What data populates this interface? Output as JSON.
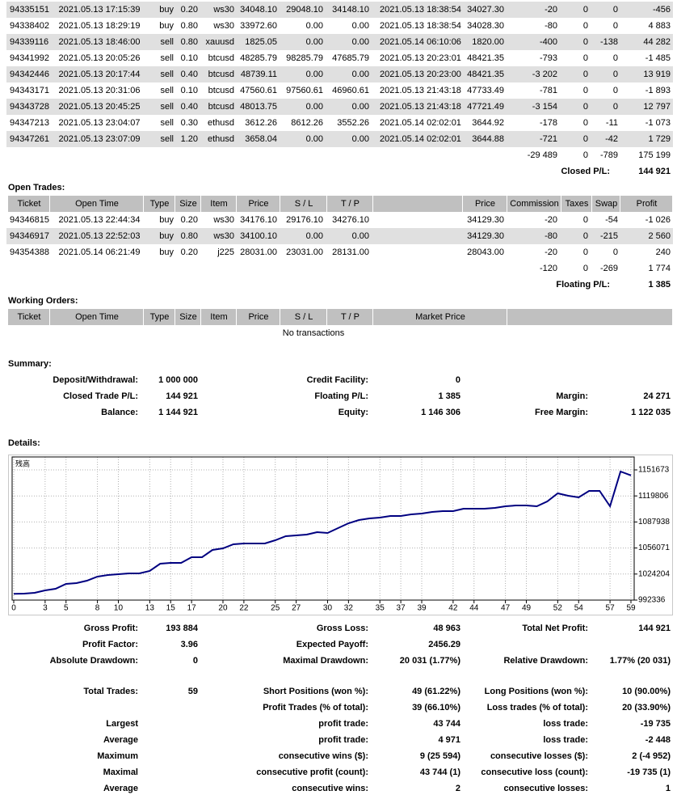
{
  "closed_trades": {
    "rows": [
      [
        "94335151",
        "2021.05.13 17:15:39",
        "buy",
        "0.20",
        "ws30",
        "34048.10",
        "29048.10",
        "34148.10",
        "2021.05.13 18:38:54",
        "34027.30",
        "-20",
        "0",
        "0",
        "-456"
      ],
      [
        "94338402",
        "2021.05.13 18:29:19",
        "buy",
        "0.80",
        "ws30",
        "33972.60",
        "0.00",
        "0.00",
        "2021.05.13 18:38:54",
        "34028.30",
        "-80",
        "0",
        "0",
        "4 883"
      ],
      [
        "94339116",
        "2021.05.13 18:46:00",
        "sell",
        "0.80",
        "xauusd",
        "1825.05",
        "0.00",
        "0.00",
        "2021.05.14 06:10:06",
        "1820.00",
        "-400",
        "0",
        "-138",
        "44 282"
      ],
      [
        "94341992",
        "2021.05.13 20:05:26",
        "sell",
        "0.10",
        "btcusd",
        "48285.79",
        "98285.79",
        "47685.79",
        "2021.05.13 20:23:01",
        "48421.35",
        "-793",
        "0",
        "0",
        "-1 485"
      ],
      [
        "94342446",
        "2021.05.13 20:17:44",
        "sell",
        "0.40",
        "btcusd",
        "48739.11",
        "0.00",
        "0.00",
        "2021.05.13 20:23:00",
        "48421.35",
        "-3 202",
        "0",
        "0",
        "13 919"
      ],
      [
        "94343171",
        "2021.05.13 20:31:06",
        "sell",
        "0.10",
        "btcusd",
        "47560.61",
        "97560.61",
        "46960.61",
        "2021.05.13 21:43:18",
        "47733.49",
        "-781",
        "0",
        "0",
        "-1 893"
      ],
      [
        "94343728",
        "2021.05.13 20:45:25",
        "sell",
        "0.40",
        "btcusd",
        "48013.75",
        "0.00",
        "0.00",
        "2021.05.13 21:43:18",
        "47721.49",
        "-3 154",
        "0",
        "0",
        "12 797"
      ],
      [
        "94347213",
        "2021.05.13 23:04:07",
        "sell",
        "0.30",
        "ethusd",
        "3612.26",
        "8612.26",
        "3552.26",
        "2021.05.14 02:02:01",
        "3644.92",
        "-178",
        "0",
        "-11",
        "-1 073"
      ],
      [
        "94347261",
        "2021.05.13 23:07:09",
        "sell",
        "1.20",
        "ethusd",
        "3658.04",
        "0.00",
        "0.00",
        "2021.05.14 02:02:01",
        "3644.88",
        "-721",
        "0",
        "-42",
        "1 729"
      ]
    ],
    "totals": [
      "-29 489",
      "0",
      "-789",
      "175 199"
    ],
    "result_label": "Closed P/L:",
    "result": "144 921"
  },
  "open_trades": {
    "title": "Open Trades:",
    "header": [
      "Ticket",
      "Open Time",
      "Type",
      "Size",
      "Item",
      "Price",
      "S / L",
      "T / P",
      "Price",
      "Commission",
      "Taxes",
      "Swap",
      "Profit"
    ],
    "rows": [
      [
        "94346815",
        "2021.05.13 22:44:34",
        "buy",
        "0.20",
        "ws30",
        "34176.10",
        "29176.10",
        "34276.10",
        "34129.30",
        "-20",
        "0",
        "-54",
        "-1 026"
      ],
      [
        "94346917",
        "2021.05.13 22:52:03",
        "buy",
        "0.80",
        "ws30",
        "34100.10",
        "0.00",
        "0.00",
        "34129.30",
        "-80",
        "0",
        "-215",
        "2 560"
      ],
      [
        "94354388",
        "2021.05.14 06:21:49",
        "buy",
        "0.20",
        "j225",
        "28031.00",
        "23031.00",
        "28131.00",
        "28043.00",
        "-20",
        "0",
        "0",
        "240"
      ]
    ],
    "totals": [
      "-120",
      "0",
      "-269",
      "1 774"
    ],
    "result_label": "Floating P/L:",
    "result": "1 385"
  },
  "working_orders": {
    "title": "Working Orders:",
    "header": [
      "Ticket",
      "Open Time",
      "Type",
      "Size",
      "Item",
      "Price",
      "S / L",
      "T / P",
      "Market Price"
    ],
    "empty": "No transactions"
  },
  "summary": {
    "title": "Summary:",
    "rows": [
      {
        "left": [
          "Deposit/Withdrawal:",
          "1 000 000"
        ],
        "middle": [
          "Credit Facility:",
          "0"
        ]
      },
      {
        "left": [
          "Closed Trade P/L:",
          "144 921"
        ],
        "middle": [
          "Floating P/L:",
          "1 385"
        ],
        "right": [
          "Margin:",
          "24 271"
        ]
      },
      {
        "left": [
          "Balance:",
          "1 144 921"
        ],
        "middle": [
          "Equity:",
          "1 146 306"
        ],
        "right": [
          "Free Margin:",
          "1 122 035"
        ]
      }
    ]
  },
  "details": {
    "title": "Details:",
    "rows": [
      {
        "left": [
          "Gross Profit:",
          "193 884"
        ],
        "middle": [
          "Gross Loss:",
          "48 963"
        ],
        "right": [
          "Total Net Profit:",
          "144 921"
        ]
      },
      {
        "left": [
          "Profit Factor:",
          "3.96"
        ],
        "middle": [
          "Expected Payoff:",
          "2456.29"
        ]
      },
      {
        "left": [
          "Absolute Drawdown:",
          "0"
        ],
        "middle": [
          "Maximal Drawdown:",
          "20 031 (1.77%)"
        ],
        "right": [
          "Relative Drawdown:",
          "1.77% (20 031)"
        ]
      },
      {
        "left": [
          "Total Trades:",
          "59"
        ],
        "middle": [
          "Short Positions (won %):",
          "49 (61.22%)"
        ],
        "right": [
          "Long Positions (won %):",
          "10 (90.00%)"
        ]
      },
      {
        "middle": [
          "Profit Trades (% of total):",
          "39 (66.10%)"
        ],
        "right": [
          "Loss trades (% of total):",
          "20 (33.90%)"
        ]
      },
      {
        "left": [
          "Largest"
        ],
        "middle": [
          "profit trade:",
          "43 744"
        ],
        "right": [
          "loss trade:",
          "-19 735"
        ]
      },
      {
        "left": [
          "Average"
        ],
        "middle": [
          "profit trade:",
          "4 971"
        ],
        "right": [
          "loss trade:",
          "-2 448"
        ]
      },
      {
        "left": [
          "Maximum"
        ],
        "middle": [
          "consecutive wins ($):",
          "9 (25 594)"
        ],
        "right": [
          "consecutive losses ($):",
          "2 (-4 952)"
        ]
      },
      {
        "left": [
          "Maximal"
        ],
        "middle": [
          "consecutive profit (count):",
          "43 744 (1)"
        ],
        "right": [
          "consecutive loss (count):",
          "-19 735 (1)"
        ]
      },
      {
        "left": [
          "Average"
        ],
        "middle": [
          "consecutive wins:",
          "2"
        ],
        "right": [
          "consecutive losses:",
          "1"
        ]
      }
    ]
  },
  "chart_data": {
    "type": "line",
    "title": "残高",
    "color": "#000080",
    "x": [
      0,
      1,
      2,
      3,
      4,
      5,
      6,
      7,
      8,
      9,
      10,
      11,
      12,
      13,
      14,
      15,
      16,
      17,
      18,
      19,
      20,
      21,
      22,
      23,
      24,
      25,
      26,
      27,
      28,
      29,
      30,
      31,
      32,
      33,
      34,
      35,
      36,
      37,
      38,
      39,
      40,
      41,
      42,
      43,
      44,
      45,
      46,
      47,
      48,
      49,
      50,
      51,
      52,
      53,
      54,
      55,
      56,
      57,
      58,
      59
    ],
    "values": [
      1000000,
      1000300,
      1001200,
      1004200,
      1006200,
      1012100,
      1013100,
      1016100,
      1021000,
      1023000,
      1024000,
      1025000,
      1025000,
      1028000,
      1036900,
      1037900,
      1037900,
      1044800,
      1044800,
      1053700,
      1055700,
      1060600,
      1061600,
      1061600,
      1061600,
      1065600,
      1070500,
      1071500,
      1072500,
      1075500,
      1074500,
      1080400,
      1086400,
      1090300,
      1092300,
      1093300,
      1095300,
      1095300,
      1097200,
      1098200,
      1100200,
      1101200,
      1101200,
      1104200,
      1104200,
      1104200,
      1105200,
      1107100,
      1108100,
      1108100,
      1107100,
      1113100,
      1123000,
      1120000,
      1118000,
      1125900,
      1125900,
      1107100,
      1149700,
      1144921
    ],
    "xlim": [
      0,
      59
    ],
    "ylim": [
      992336,
      1167500
    ],
    "xticks": [
      0,
      3,
      5,
      8,
      10,
      13,
      15,
      17,
      20,
      22,
      25,
      27,
      30,
      32,
      35,
      37,
      39,
      42,
      44,
      47,
      49,
      52,
      54,
      57,
      59
    ],
    "yticks": [
      992336,
      1024204,
      1056071,
      1087938,
      1119806,
      1151673
    ],
    "grid": true
  }
}
